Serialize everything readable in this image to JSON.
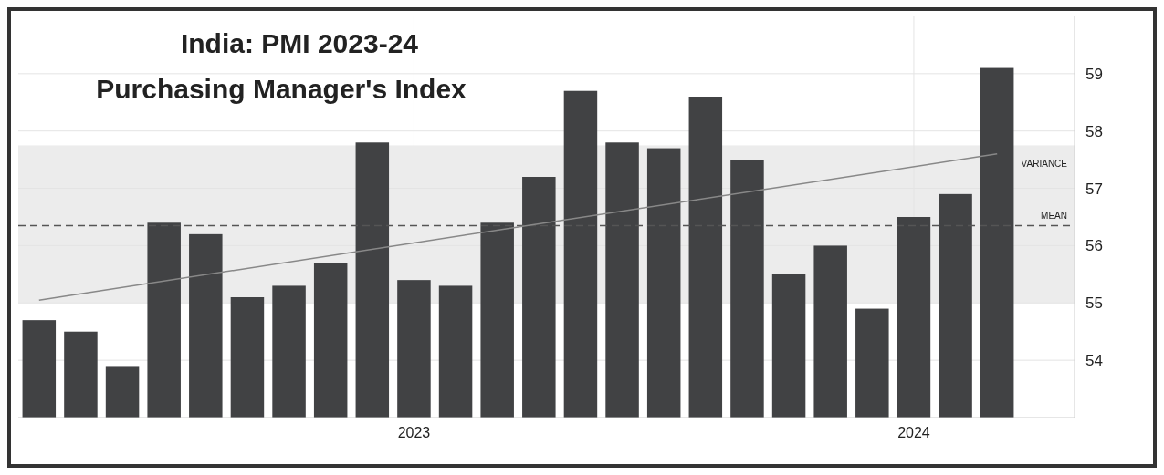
{
  "chart_data": {
    "type": "bar",
    "title": "India: PMI 2023-24",
    "subtitle": "Purchasing Manager's Index",
    "categories": [
      null,
      null,
      null,
      null,
      null,
      null,
      null,
      null,
      null,
      "2023",
      null,
      null,
      null,
      null,
      null,
      null,
      null,
      null,
      null,
      null,
      null,
      "2024",
      null,
      null
    ],
    "series": [
      {
        "color": "#414244",
        "values": [
          54.7,
          54.5,
          53.9,
          56.4,
          56.2,
          55.1,
          55.3,
          55.7,
          57.8,
          55.4,
          55.3,
          56.4,
          57.2,
          58.7,
          57.8,
          57.7,
          58.6,
          57.5,
          55.5,
          56.0,
          54.9,
          56.5,
          56.9,
          59.1
        ]
      },
      {
        "type": "line",
        "color": "#888888",
        "values": [
          55.05,
          null,
          null,
          null,
          null,
          null,
          null,
          null,
          null,
          null,
          null,
          null,
          null,
          null,
          null,
          null,
          null,
          null,
          null,
          null,
          null,
          null,
          null,
          57.6
        ]
      }
    ],
    "ylim": [
      53,
      60
    ],
    "yticks": [
      54,
      55,
      56,
      57,
      58,
      59
    ],
    "grid": true,
    "bands": [
      {
        "axis": "y",
        "from": 55,
        "to": 57.75,
        "label": "VARIANCE",
        "color": "#ececec"
      }
    ],
    "ref_lines": [
      {
        "axis": "y",
        "value": 56.35,
        "label": "MEAN",
        "color": "#555555",
        "line_style": "dashed"
      }
    ]
  }
}
